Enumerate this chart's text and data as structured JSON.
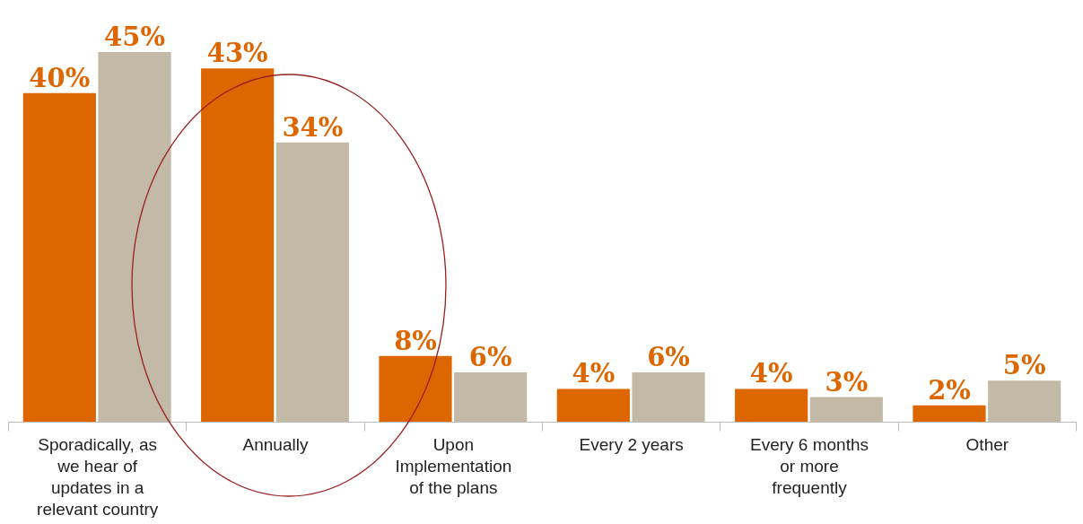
{
  "chart_data": {
    "type": "bar",
    "legend": false,
    "grid": false,
    "categories": [
      "Sporadically, as we hear of updates in a relevant country",
      "Annually",
      "Upon Implementation of the plans",
      "Every 2 years",
      "Every 6 months or more frequently",
      "Other"
    ],
    "series": [
      {
        "color": "#dd6600",
        "values": [
          40,
          43,
          8,
          4,
          4,
          2
        ],
        "value_labels": [
          "40%",
          "43%",
          "8%",
          "4%",
          "4%",
          "2%"
        ]
      },
      {
        "color": "#c2baa6",
        "values": [
          45,
          34,
          6,
          6,
          3,
          5
        ],
        "value_labels": [
          "45%",
          "34%",
          "6%",
          "6%",
          "3%",
          "5%"
        ]
      }
    ]
  }
}
